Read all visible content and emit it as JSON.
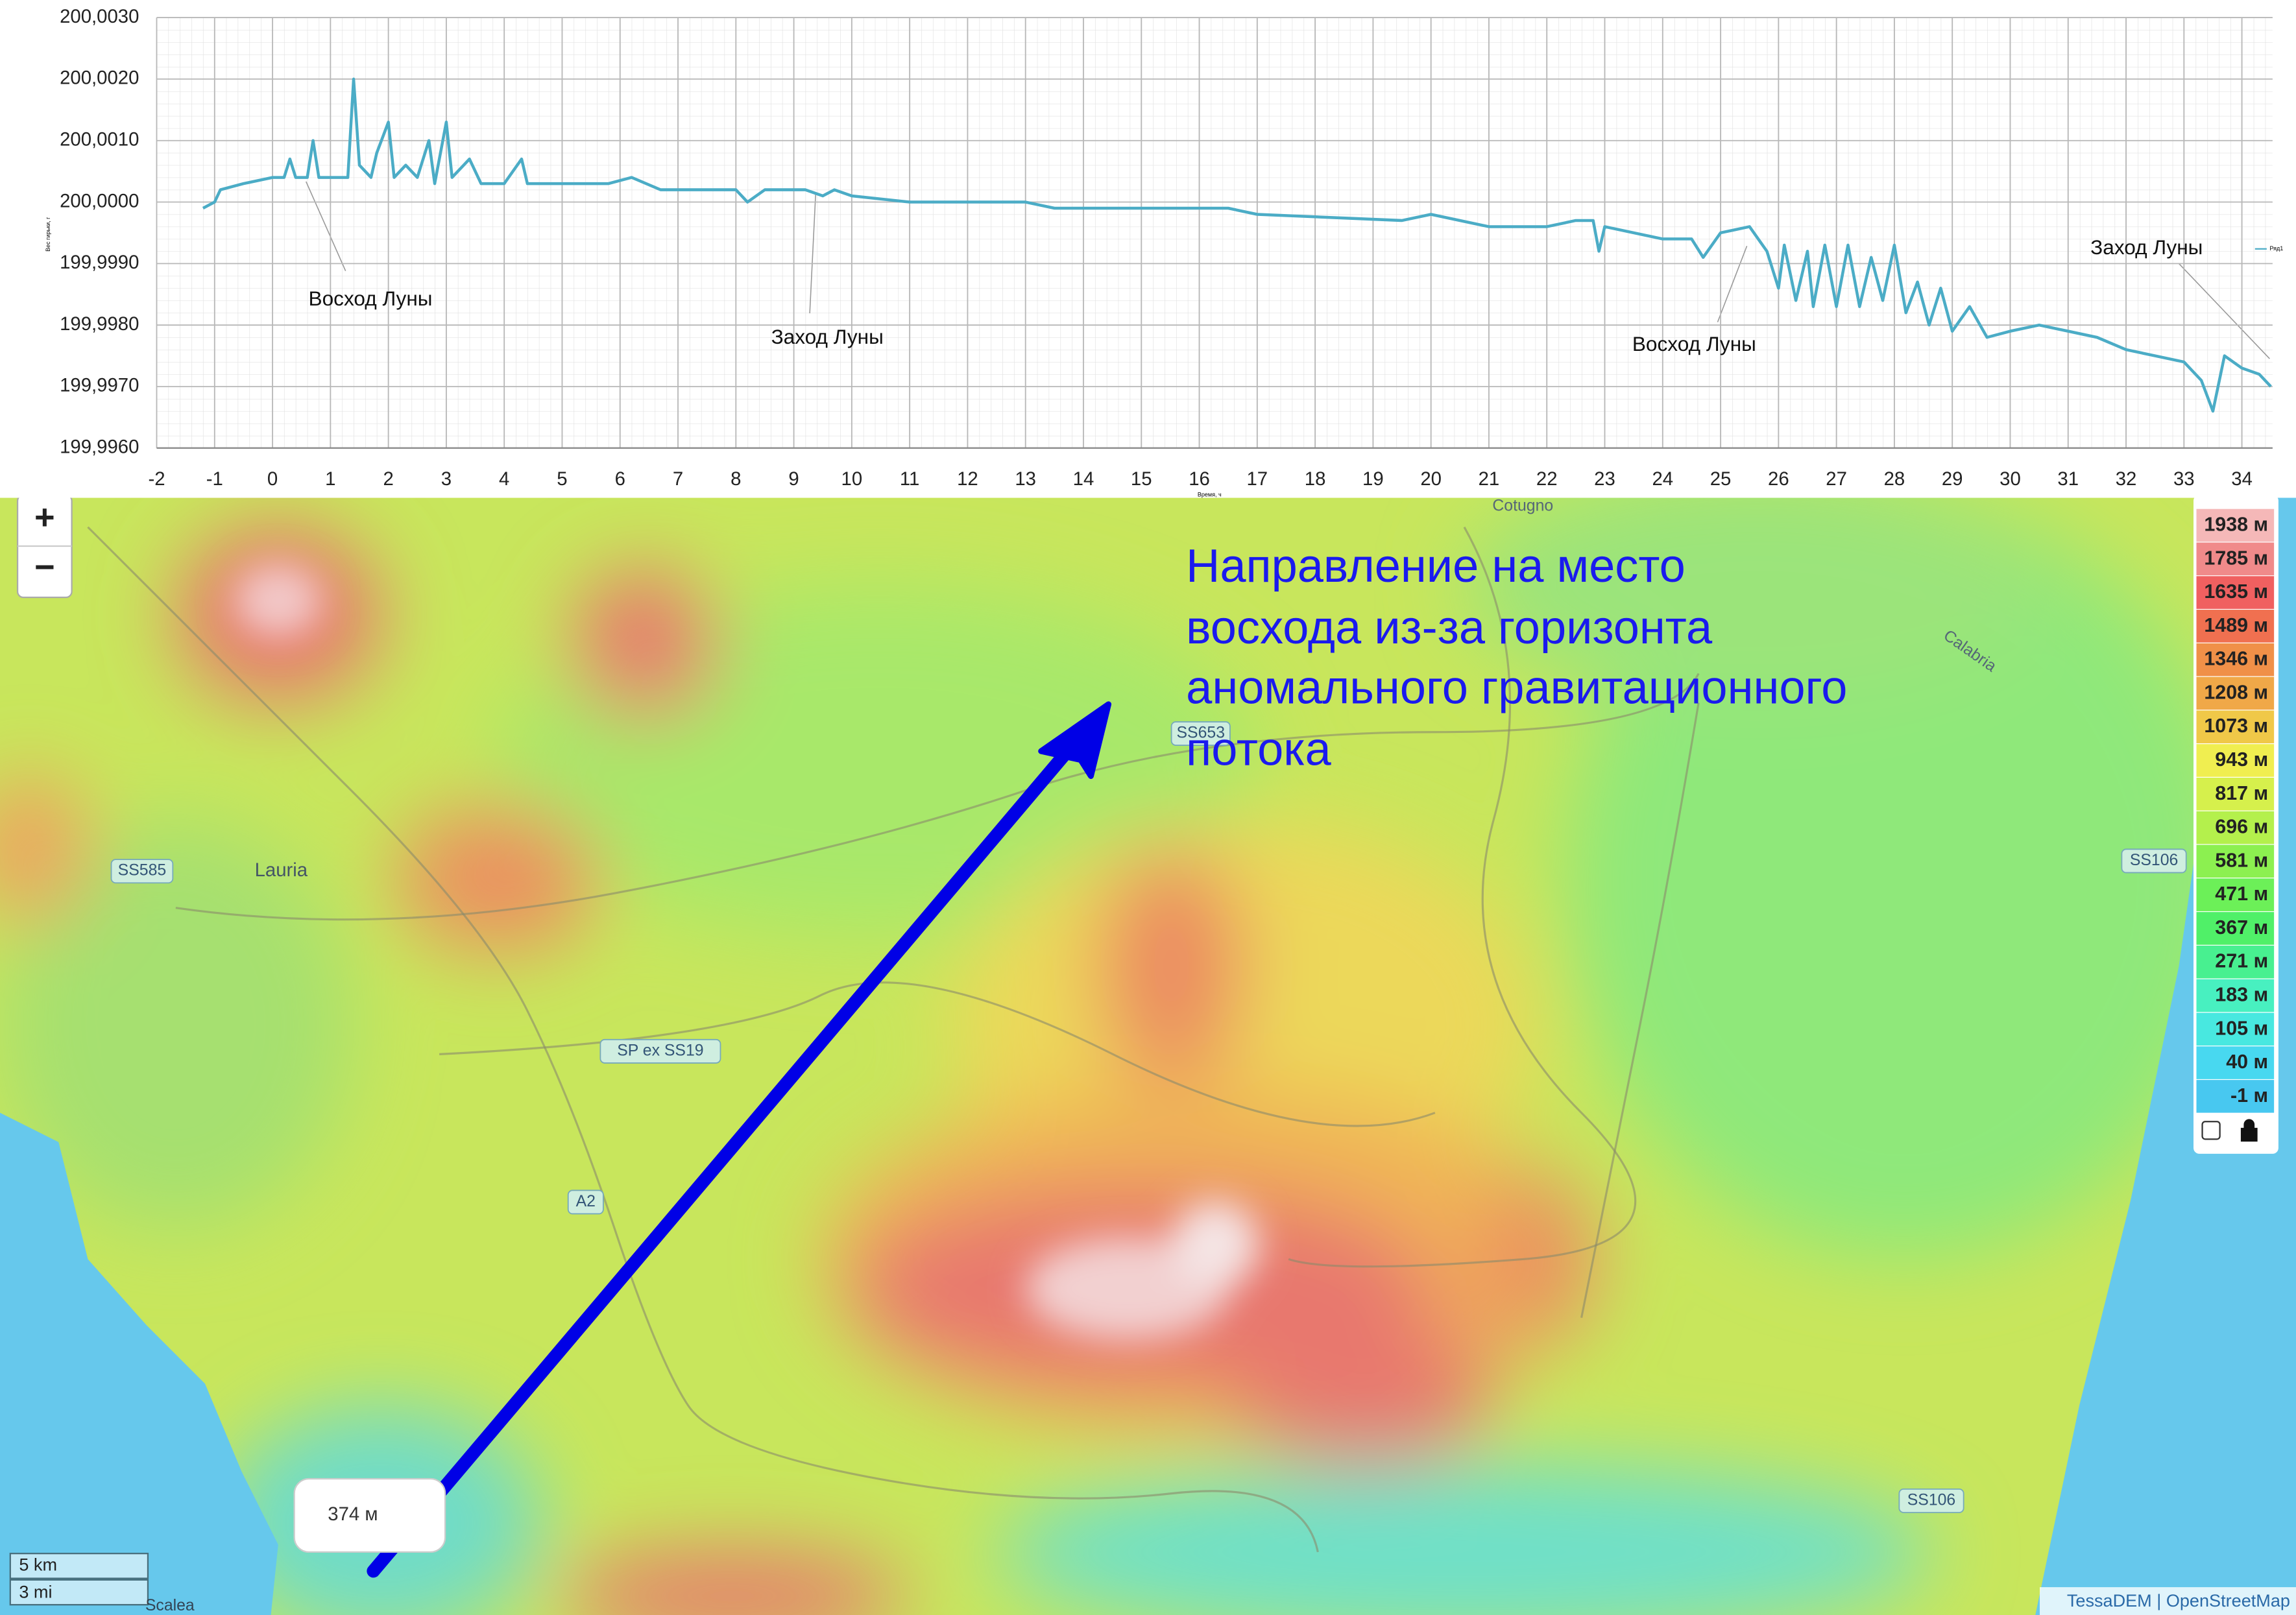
{
  "chart_data": {
    "type": "line",
    "ylabel": "Вес гирьки, г",
    "xlabel": "Время, ч",
    "annotations": [
      "Восход Луны",
      "Заход Луны",
      "Восход Луны",
      "Заход Луны"
    ],
    "x": [
      -1.2,
      -1.0,
      -0.9,
      -0.5,
      0,
      0.2,
      0.3,
      0.4,
      0.6,
      0.7,
      0.8,
      1.0,
      1.3,
      1.4,
      1.5,
      1.7,
      1.8,
      2.0,
      2.1,
      2.3,
      2.5,
      2.7,
      2.8,
      3.0,
      3.1,
      3.4,
      3.6,
      4.0,
      4.3,
      4.4,
      5,
      5.8,
      6.2,
      6.7,
      8,
      8.2,
      8.5,
      9.2,
      9.5,
      9.7,
      10,
      11,
      13,
      13.5,
      14.5,
      15,
      16.5,
      17,
      19.5,
      20,
      21,
      22,
      22.5,
      22.8,
      22.9,
      23,
      23.5,
      24,
      24.5,
      24.7,
      25,
      25.5,
      25.8,
      26.0,
      26.1,
      26.3,
      26.5,
      26.6,
      26.8,
      27.0,
      27.2,
      27.4,
      27.6,
      27.8,
      28.0,
      28.2,
      28.4,
      28.6,
      28.8,
      29.0,
      29.3,
      29.6,
      30,
      30.5,
      31,
      31.5,
      32,
      32.5,
      33,
      33.3,
      33.5,
      33.7,
      34,
      34.3,
      34.5
    ],
    "series": [
      {
        "name": "Ряд1",
        "color": "#4bacc6",
        "values": [
          199.9999,
          200.0,
          200.0002,
          200.0003,
          200.0004,
          200.0004,
          200.0007,
          200.0004,
          200.0004,
          200.001,
          200.0004,
          200.0004,
          200.0004,
          200.002,
          200.0006,
          200.0004,
          200.0008,
          200.0013,
          200.0004,
          200.0006,
          200.0004,
          200.001,
          200.0003,
          200.0013,
          200.0004,
          200.0007,
          200.0003,
          200.0003,
          200.0007,
          200.0003,
          200.0003,
          200.0003,
          200.0004,
          200.0002,
          200.0002,
          200.0,
          200.0002,
          200.0002,
          200.0001,
          200.0002,
          200.0001,
          200.0,
          200.0,
          199.9999,
          199.9999,
          199.9999,
          199.9999,
          199.9998,
          199.9997,
          199.9998,
          199.9996,
          199.9996,
          199.9997,
          199.9997,
          199.9992,
          199.9996,
          199.9995,
          199.9994,
          199.9994,
          199.9991,
          199.9995,
          199.9996,
          199.9992,
          199.9986,
          199.9993,
          199.9984,
          199.9992,
          199.9983,
          199.9993,
          199.9983,
          199.9993,
          199.9983,
          199.9991,
          199.9984,
          199.9993,
          199.9982,
          199.9987,
          199.998,
          199.9986,
          199.9979,
          199.9983,
          199.9978,
          199.9979,
          199.998,
          199.9979,
          199.9978,
          199.9976,
          199.9975,
          199.9974,
          199.9971,
          199.9966,
          199.9975,
          199.9973,
          199.9972,
          199.997
        ]
      }
    ],
    "xlim": [
      -2,
      34.53
    ],
    "ylim": [
      199.996,
      200.003
    ],
    "xticks": [
      -2,
      -1,
      0,
      1,
      2,
      3,
      4,
      5,
      6,
      7,
      8,
      9,
      10,
      11,
      12,
      13,
      14,
      15,
      16,
      17,
      18,
      19,
      20,
      21,
      22,
      23,
      24,
      25,
      26,
      27,
      28,
      29,
      30,
      31,
      32,
      33,
      34
    ],
    "yticks": [
      {
        "value": 199.996,
        "label": "199,9960"
      },
      {
        "value": 199.997,
        "label": "199,9970"
      },
      {
        "value": 199.998,
        "label": "199,9980"
      },
      {
        "value": 199.999,
        "label": "199,9990"
      },
      {
        "value": 200.0,
        "label": "200,0000"
      },
      {
        "value": 200.001,
        "label": "200,0010"
      },
      {
        "value": 200.002,
        "label": "200,0020"
      },
      {
        "value": 200.003,
        "label": "200,0030"
      }
    ],
    "grid": true
  },
  "map": {
    "annotation": [
      "Направление на место",
      "восхода из-за горизонта",
      "аномального гравитационного",
      "потока"
    ],
    "labels": [
      "SS585",
      "SP ex SS19",
      "A2",
      "SS653",
      "SS106",
      "SS106"
    ],
    "places": [
      "Lauria",
      "Calabria",
      "Cotugno",
      "Scalea"
    ],
    "popup": "374 м",
    "zoom": [
      "+",
      "−"
    ],
    "scale": [
      "5 km",
      "3 mi"
    ],
    "attribution": "TessaDEM | OpenStreetMap",
    "legend": [
      {
        "label": "1938 м",
        "color": "#f5b8b8"
      },
      {
        "label": "1785 м",
        "color": "#f08a8a"
      },
      {
        "label": "1635 м",
        "color": "#f06060"
      },
      {
        "label": "1489 м",
        "color": "#f07050"
      },
      {
        "label": "1346 м",
        "color": "#f09048"
      },
      {
        "label": "1208 м",
        "color": "#f0a848"
      },
      {
        "label": "1073 м",
        "color": "#f0c848"
      },
      {
        "label": "943 м",
        "color": "#f0ee50"
      },
      {
        "label": "817 м",
        "color": "#d6f04c"
      },
      {
        "label": "696 м",
        "color": "#b4f04c"
      },
      {
        "label": "581 м",
        "color": "#8cf050"
      },
      {
        "label": "471 м",
        "color": "#6cf058"
      },
      {
        "label": "367 м",
        "color": "#50f068"
      },
      {
        "label": "271 м",
        "color": "#48f090"
      },
      {
        "label": "183 м",
        "color": "#48f0c0"
      },
      {
        "label": "105 м",
        "color": "#48e8e0"
      },
      {
        "label": "40 м",
        "color": "#48d8f0"
      },
      {
        "label": "-1 м",
        "color": "#48c8f0"
      }
    ]
  }
}
